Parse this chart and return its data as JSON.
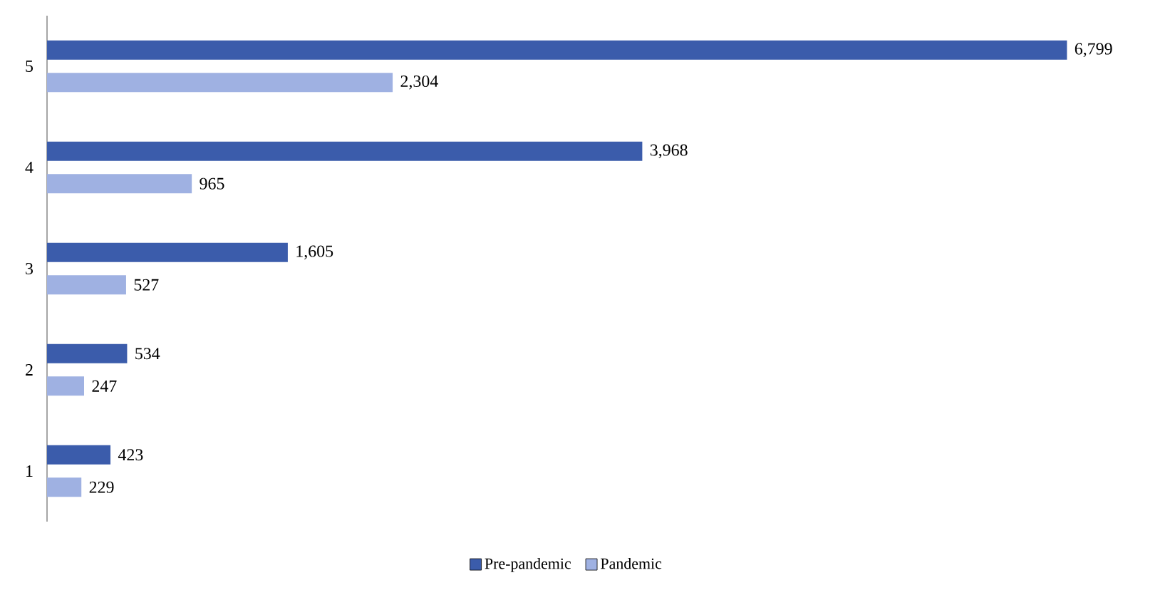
{
  "chart_data": {
    "type": "bar",
    "orientation": "horizontal",
    "categories": [
      "5",
      "4",
      "3",
      "2",
      "1"
    ],
    "series": [
      {
        "name": "Pre-pandemic",
        "color": "#3b5cab",
        "values": [
          6799,
          3968,
          1605,
          534,
          423
        ],
        "value_labels": [
          "6,799",
          "3,968",
          "1,605",
          "534",
          "423"
        ]
      },
      {
        "name": "Pandemic",
        "color": "#9fb1e2",
        "values": [
          2304,
          965,
          527,
          247,
          229
        ],
        "value_labels": [
          "2,304",
          "965",
          "527",
          "247",
          "229"
        ]
      }
    ],
    "legend": "bottom"
  }
}
